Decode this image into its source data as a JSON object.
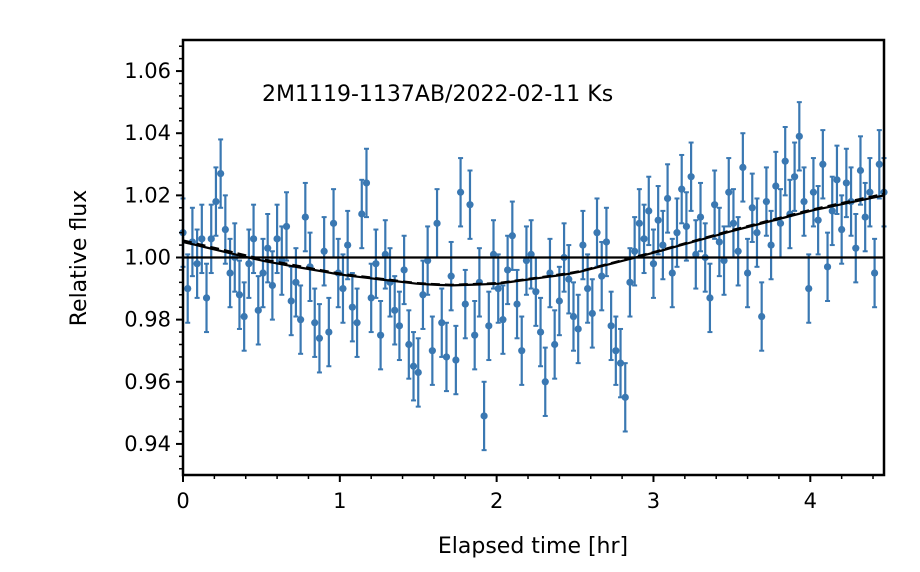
{
  "chart_data": {
    "type": "scatter",
    "title": "2M1119-1137AB/2022-02-11 Ks",
    "xlabel": "Elapsed time [hr]",
    "ylabel": "Relative flux",
    "xlim": [
      0,
      4.47
    ],
    "ylim": [
      0.93,
      1.07
    ],
    "xticks": [
      0,
      1,
      2,
      3,
      4
    ],
    "xtick_labels": [
      "0",
      "1",
      "2",
      "3",
      "4"
    ],
    "yticks": [
      0.94,
      0.96,
      0.98,
      1.0,
      1.02,
      1.04,
      1.06
    ],
    "ytick_labels": [
      "0.94",
      "0.96",
      "0.98",
      "1.00",
      "1.02",
      "1.04",
      "1.06"
    ],
    "grid": false,
    "colors": {
      "data": "#3a78b2",
      "model": "#000000"
    },
    "data_series": {
      "name": "flux",
      "time_start": 0,
      "time_step": 0.03,
      "error": 0.011,
      "flux": [
        1.008,
        0.99,
        1.005,
        0.998,
        1.006,
        0.987,
        1.006,
        1.018,
        1.027,
        1.009,
        0.995,
        1.0,
        0.988,
        0.981,
        0.998,
        1.006,
        0.983,
        0.995,
        1.003,
        0.991,
        1.006,
        0.999,
        1.01,
        0.986,
        0.992,
        0.98,
        1.013,
        0.997,
        0.979,
        0.974,
        1.002,
        0.976,
        1.011,
        0.995,
        0.99,
        1.004,
        0.984,
        0.979,
        1.014,
        1.024,
        0.987,
        0.998,
        0.975,
        1.001,
        0.992,
        0.983,
        0.978,
        0.996,
        0.972,
        0.965,
        0.963,
        0.988,
        0.999,
        0.97,
        1.011,
        0.979,
        0.968,
        0.994,
        0.967,
        1.021,
        0.985,
        1.017,
        0.975,
        0.992,
        0.949,
        0.978,
        1.001,
        0.99,
        0.98,
        0.996,
        1.007,
        0.985,
        0.97,
        0.999,
        1.001,
        0.989,
        0.976,
        0.96,
        0.995,
        0.972,
        0.986,
        1.0,
        0.993,
        0.981,
        0.977,
        1.004,
        0.99,
        0.982,
        1.008,
        0.994,
        1.005,
        0.978,
        0.97,
        0.966,
        0.955,
        0.992,
        1.002,
        1.011,
        1.006,
        1.015,
        0.998,
        1.012,
        1.004,
        1.019,
        0.995,
        1.008,
        1.022,
        1.01,
        1.026,
        1.001,
        1.013,
        1.0,
        0.987,
        1.017,
        1.005,
        0.999,
        1.021,
        1.011,
        1.002,
        1.029,
        0.995,
        1.016,
        1.008,
        0.981,
        1.018,
        1.004,
        1.023,
        1.011,
        1.031,
        1.014,
        1.026,
        1.039,
        1.018,
        0.99,
        1.021,
        1.012,
        1.03,
        0.997,
        1.015,
        1.025,
        1.009,
        1.024,
        1.018,
        1.003,
        1.028,
        1.013,
        1.021,
        0.995,
        1.03,
        1.021
      ]
    },
    "model_solid": {
      "x": [
        0,
        0.5,
        1.0,
        1.5,
        1.7,
        2.0,
        2.5,
        3.0,
        3.5,
        4.0,
        4.47
      ],
      "y": [
        1.005,
        0.999,
        0.9945,
        0.9915,
        0.991,
        0.9915,
        0.995,
        1.0015,
        1.0085,
        1.015,
        1.02
      ]
    },
    "model_dashed": {
      "x": [
        0,
        0.5,
        1.0,
        1.5,
        1.7,
        2.0,
        2.5,
        3.0,
        3.5,
        4.0,
        4.47
      ],
      "y": [
        1.0055,
        0.9995,
        0.9948,
        0.9917,
        0.9912,
        0.9917,
        0.9952,
        1.0017,
        1.0088,
        1.0153,
        1.0205
      ]
    },
    "reference_line": 1.0
  }
}
